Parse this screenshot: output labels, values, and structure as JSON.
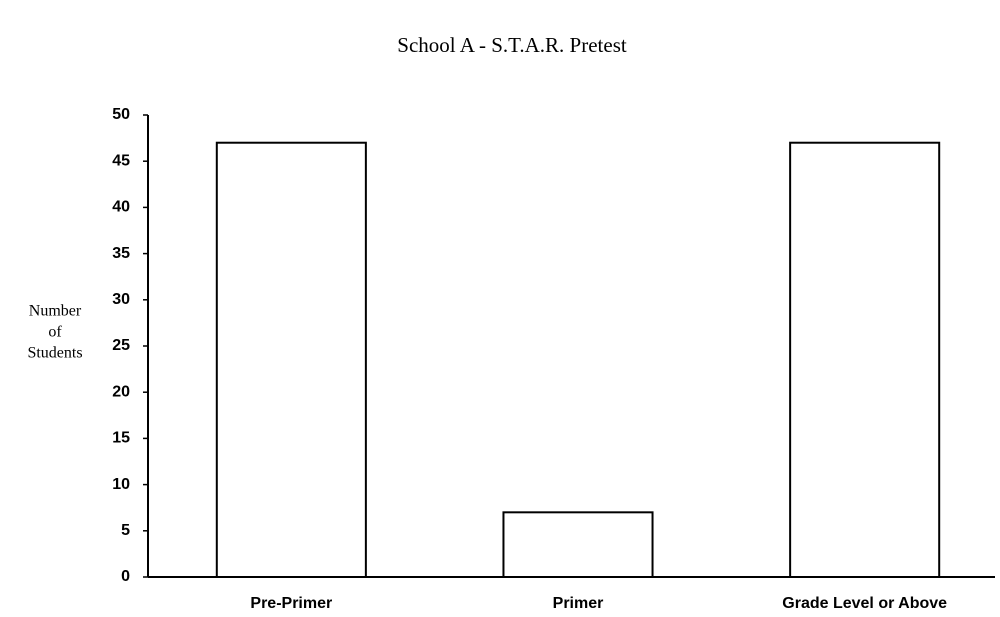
{
  "chart_data": {
    "type": "bar",
    "title": "School A - S.T.A.R. Pretest",
    "ylabel": [
      "Number",
      "of",
      "Students"
    ],
    "categories": [
      "Pre-Primer",
      "Primer",
      "Grade Level or Above"
    ],
    "values": [
      47,
      7,
      47
    ],
    "color": "#ffffff",
    "ylim": [
      0,
      50
    ],
    "yticks": [
      0,
      5,
      10,
      15,
      20,
      25,
      30,
      35,
      40,
      45,
      50
    ],
    "grid": false
  }
}
